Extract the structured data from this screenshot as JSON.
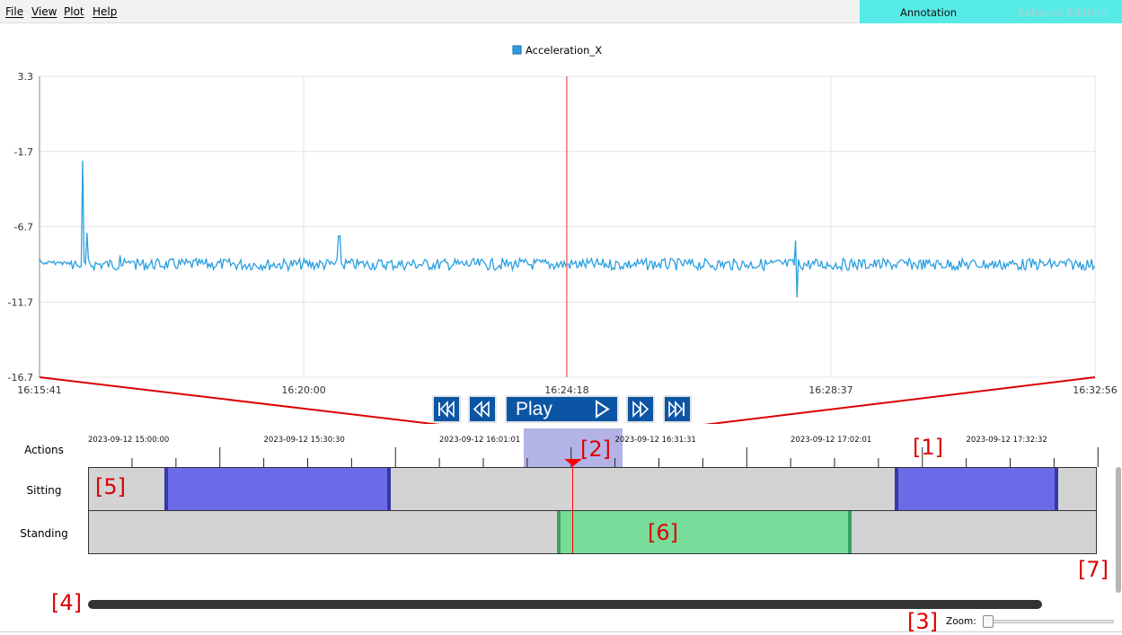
{
  "menu": {
    "file": "File",
    "view": "View",
    "plot": "Plot",
    "help": "Help"
  },
  "mode_tabs": {
    "annotation": "Annotation",
    "behavior_editing": "Behavior Editting"
  },
  "chart_data": {
    "type": "line",
    "legend": "Acceleration_X",
    "y_ticks": [
      "3.3",
      "-1.7",
      "-6.7",
      "-11.7",
      "-16.7"
    ],
    "x_ticks": [
      "16:15:41",
      "16:20:00",
      "16:24:18",
      "16:28:37",
      "16:32:56"
    ],
    "ylim": [
      -16.7,
      3.3
    ],
    "xlim": [
      "16:15:41",
      "16:32:56"
    ],
    "grid": true,
    "cursor_time": "16:24:18",
    "series": [
      {
        "name": "Acceleration_X",
        "color": "#2a9fe0",
        "baseline": -9.2,
        "approx_points": [
          {
            "x": "16:15:41",
            "y": -8.8
          },
          {
            "x": "16:16:19",
            "y": -9.3
          },
          {
            "x": "16:16:23",
            "y": -2.3
          },
          {
            "x": "16:16:28",
            "y": -7.1
          },
          {
            "x": "16:17:00",
            "y": -8.6
          },
          {
            "x": "16:17:12",
            "y": -9.0
          },
          {
            "x": "16:20:35",
            "y": -7.3
          },
          {
            "x": "16:24:18",
            "y": -9.2
          },
          {
            "x": "16:28:03",
            "y": -11.4
          },
          {
            "x": "16:28:02",
            "y": -7.6
          },
          {
            "x": "16:32:56",
            "y": -9.3
          }
        ]
      }
    ]
  },
  "playback": {
    "first_icon": "skip-to-start-icon",
    "rewind_icon": "rewind-icon",
    "play_label": "Play",
    "play_icon": "play-icon",
    "forward_icon": "fast-forward-icon",
    "last_icon": "skip-to-end-icon",
    "button_color": "#0b55a4"
  },
  "timeline": {
    "ruler_labels": [
      "2023-09-12 15:00:00",
      "2023-09-12 15:30:30",
      "2023-09-12 16:01:01",
      "2023-09-12 16:31:31",
      "2023-09-12 17:02:01",
      "2023-09-12 17:32:32"
    ],
    "tracks": {
      "actions": "Actions",
      "sitting": "Sitting",
      "standing": "Standing"
    },
    "colors": {
      "sitting": "#6b6be8",
      "standing": "#77dc99",
      "selection": "#b3b3e8",
      "cursor": "#ff0000"
    }
  },
  "annotations": [
    "[1]",
    "[2]",
    "[3]",
    "[4]",
    "[5]",
    "[6]",
    "[7]"
  ],
  "zoom": {
    "label": "Zoom:",
    "value": 0
  }
}
